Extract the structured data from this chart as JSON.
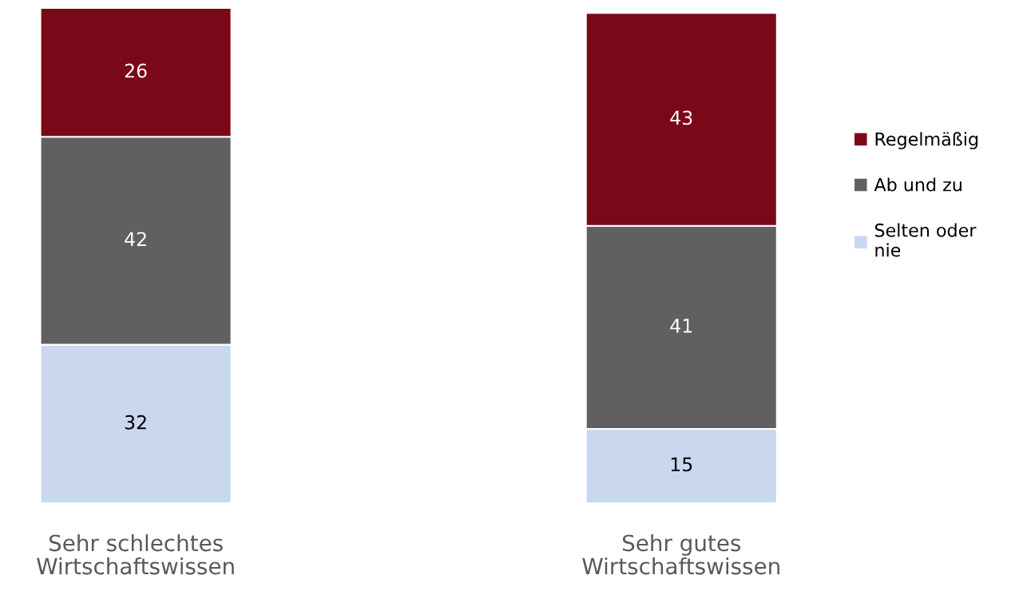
{
  "chart_data": {
    "type": "bar",
    "stacked": true,
    "categories": [
      "Sehr schlechtes Wirtschaftswissen",
      "Sehr gutes Wirtschaftswissen"
    ],
    "series": [
      {
        "name": "Selten oder\nnie",
        "color": "#c9d8ef",
        "values": [
          32,
          15
        ]
      },
      {
        "name": "Ab und zu",
        "color": "#606060",
        "values": [
          42,
          41
        ]
      },
      {
        "name": "Regelmäßig",
        "color": "#7b0818",
        "values": [
          26,
          43
        ]
      }
    ],
    "ylim": [
      0,
      100
    ],
    "data_labels": true,
    "legend": "right",
    "tick_labels": "x",
    "grid": false
  }
}
